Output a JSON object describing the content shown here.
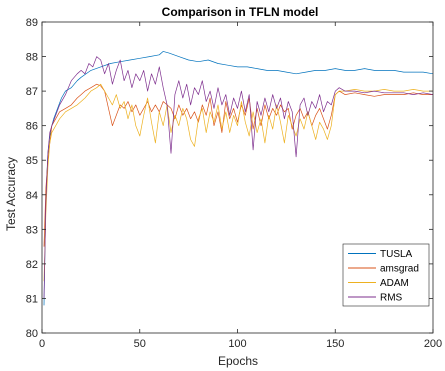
{
  "chart_data": {
    "type": "line",
    "title": "Comparison in TFLN model",
    "xlabel": "Epochs",
    "ylabel": "Test Accuracy",
    "xlim": [
      0,
      200
    ],
    "ylim": [
      80,
      89
    ],
    "xticks": [
      "0",
      "50",
      "100",
      "150",
      "200"
    ],
    "yticks": [
      "80",
      "81",
      "82",
      "83",
      "84",
      "85",
      "86",
      "87",
      "88",
      "89"
    ],
    "grid": false,
    "legend_position": "bottom-right",
    "series": [
      {
        "name": "TUSLA",
        "color": "#0072BD",
        "points": [
          [
            1,
            80.8
          ],
          [
            2,
            84.0
          ],
          [
            3,
            85.2
          ],
          [
            4,
            85.7
          ],
          [
            5,
            86.0
          ],
          [
            6,
            86.2
          ],
          [
            8,
            86.5
          ],
          [
            10,
            86.8
          ],
          [
            12,
            87.0
          ],
          [
            15,
            87.1
          ],
          [
            18,
            87.3
          ],
          [
            20,
            87.4
          ],
          [
            25,
            87.6
          ],
          [
            30,
            87.7
          ],
          [
            35,
            87.8
          ],
          [
            40,
            87.85
          ],
          [
            45,
            87.9
          ],
          [
            50,
            87.95
          ],
          [
            55,
            88.0
          ],
          [
            60,
            88.05
          ],
          [
            62,
            88.15
          ],
          [
            65,
            88.1
          ],
          [
            70,
            88.0
          ],
          [
            75,
            87.9
          ],
          [
            80,
            87.85
          ],
          [
            85,
            87.9
          ],
          [
            90,
            87.8
          ],
          [
            95,
            87.75
          ],
          [
            100,
            87.7
          ],
          [
            105,
            87.7
          ],
          [
            110,
            87.65
          ],
          [
            115,
            87.6
          ],
          [
            120,
            87.6
          ],
          [
            125,
            87.55
          ],
          [
            130,
            87.5
          ],
          [
            135,
            87.55
          ],
          [
            140,
            87.6
          ],
          [
            145,
            87.6
          ],
          [
            150,
            87.65
          ],
          [
            155,
            87.6
          ],
          [
            160,
            87.6
          ],
          [
            165,
            87.65
          ],
          [
            170,
            87.6
          ],
          [
            175,
            87.6
          ],
          [
            180,
            87.6
          ],
          [
            185,
            87.55
          ],
          [
            190,
            87.55
          ],
          [
            195,
            87.55
          ],
          [
            200,
            87.5
          ]
        ]
      },
      {
        "name": "amsgrad",
        "color": "#D95319",
        "points": [
          [
            1,
            82.5
          ],
          [
            2,
            84.2
          ],
          [
            3,
            85.0
          ],
          [
            4,
            85.5
          ],
          [
            5,
            86.0
          ],
          [
            7,
            86.2
          ],
          [
            9,
            86.4
          ],
          [
            12,
            86.5
          ],
          [
            15,
            86.6
          ],
          [
            18,
            86.8
          ],
          [
            20,
            86.9
          ],
          [
            22,
            87.0
          ],
          [
            25,
            87.1
          ],
          [
            28,
            87.2
          ],
          [
            30,
            87.15
          ],
          [
            32,
            87.0
          ],
          [
            34,
            86.5
          ],
          [
            36,
            86.0
          ],
          [
            38,
            86.3
          ],
          [
            40,
            86.6
          ],
          [
            42,
            86.5
          ],
          [
            44,
            86.7
          ],
          [
            46,
            86.4
          ],
          [
            48,
            86.6
          ],
          [
            50,
            86.3
          ],
          [
            52,
            86.5
          ],
          [
            54,
            86.7
          ],
          [
            56,
            86.4
          ],
          [
            58,
            86.6
          ],
          [
            60,
            86.4
          ],
          [
            62,
            86.7
          ],
          [
            64,
            86.6
          ],
          [
            66,
            86.5
          ],
          [
            68,
            86.2
          ],
          [
            70,
            86.6
          ],
          [
            72,
            86.3
          ],
          [
            74,
            86.5
          ],
          [
            76,
            86.2
          ],
          [
            78,
            86.4
          ],
          [
            80,
            86.1
          ],
          [
            82,
            86.6
          ],
          [
            84,
            86.3
          ],
          [
            86,
            86.8
          ],
          [
            88,
            86.0
          ],
          [
            90,
            86.4
          ],
          [
            92,
            85.8
          ],
          [
            94,
            86.7
          ],
          [
            96,
            86.2
          ],
          [
            98,
            86.5
          ],
          [
            100,
            86.1
          ],
          [
            102,
            86.6
          ],
          [
            104,
            86.3
          ],
          [
            106,
            86.8
          ],
          [
            108,
            85.9
          ],
          [
            110,
            86.5
          ],
          [
            112,
            86.0
          ],
          [
            114,
            86.6
          ],
          [
            116,
            86.2
          ],
          [
            118,
            86.5
          ],
          [
            120,
            86.3
          ],
          [
            122,
            86.6
          ],
          [
            124,
            86.4
          ],
          [
            126,
            86.5
          ],
          [
            128,
            85.9
          ],
          [
            130,
            86.3
          ],
          [
            132,
            86.5
          ],
          [
            134,
            86.2
          ],
          [
            136,
            86.4
          ],
          [
            138,
            86.0
          ],
          [
            140,
            86.3
          ],
          [
            142,
            86.5
          ],
          [
            144,
            86.2
          ],
          [
            146,
            85.9
          ],
          [
            148,
            86.3
          ],
          [
            150,
            86.9
          ],
          [
            152,
            87.0
          ],
          [
            155,
            86.9
          ],
          [
            160,
            86.95
          ],
          [
            165,
            86.9
          ],
          [
            170,
            86.85
          ],
          [
            175,
            86.9
          ],
          [
            180,
            86.9
          ],
          [
            185,
            86.9
          ],
          [
            190,
            86.95
          ],
          [
            195,
            86.9
          ],
          [
            200,
            86.9
          ]
        ]
      },
      {
        "name": "ADAM",
        "color": "#EDB120",
        "points": [
          [
            1,
            81.5
          ],
          [
            2,
            83.5
          ],
          [
            3,
            84.8
          ],
          [
            4,
            85.5
          ],
          [
            5,
            85.8
          ],
          [
            7,
            86.0
          ],
          [
            9,
            86.2
          ],
          [
            12,
            86.4
          ],
          [
            15,
            86.5
          ],
          [
            18,
            86.6
          ],
          [
            20,
            86.7
          ],
          [
            22,
            86.8
          ],
          [
            25,
            87.0
          ],
          [
            28,
            87.1
          ],
          [
            30,
            87.2
          ],
          [
            32,
            87.0
          ],
          [
            34,
            86.8
          ],
          [
            36,
            86.6
          ],
          [
            38,
            86.9
          ],
          [
            40,
            86.5
          ],
          [
            42,
            86.7
          ],
          [
            44,
            86.2
          ],
          [
            46,
            86.6
          ],
          [
            48,
            86.0
          ],
          [
            50,
            85.7
          ],
          [
            52,
            86.3
          ],
          [
            54,
            86.8
          ],
          [
            56,
            86.1
          ],
          [
            58,
            85.5
          ],
          [
            60,
            86.4
          ],
          [
            62,
            86.0
          ],
          [
            64,
            86.6
          ],
          [
            66,
            85.8
          ],
          [
            68,
            86.3
          ],
          [
            70,
            86.0
          ],
          [
            72,
            86.5
          ],
          [
            74,
            86.2
          ],
          [
            76,
            85.6
          ],
          [
            78,
            85.4
          ],
          [
            80,
            86.2
          ],
          [
            82,
            86.5
          ],
          [
            84,
            85.8
          ],
          [
            86,
            86.4
          ],
          [
            88,
            86.1
          ],
          [
            90,
            86.6
          ],
          [
            92,
            85.9
          ],
          [
            94,
            86.4
          ],
          [
            96,
            85.8
          ],
          [
            98,
            86.3
          ],
          [
            100,
            86.0
          ],
          [
            102,
            86.7
          ],
          [
            104,
            86.1
          ],
          [
            106,
            85.7
          ],
          [
            108,
            86.4
          ],
          [
            110,
            85.8
          ],
          [
            112,
            86.2
          ],
          [
            114,
            85.5
          ],
          [
            116,
            86.3
          ],
          [
            118,
            85.9
          ],
          [
            120,
            86.6
          ],
          [
            122,
            86.1
          ],
          [
            124,
            85.5
          ],
          [
            126,
            86.3
          ],
          [
            128,
            86.0
          ],
          [
            130,
            85.7
          ],
          [
            132,
            86.2
          ],
          [
            134,
            85.9
          ],
          [
            136,
            86.4
          ],
          [
            138,
            86.0
          ],
          [
            140,
            85.6
          ],
          [
            142,
            86.1
          ],
          [
            144,
            85.9
          ],
          [
            146,
            85.6
          ],
          [
            148,
            86.0
          ],
          [
            150,
            86.9
          ],
          [
            152,
            87.0
          ],
          [
            155,
            87.0
          ],
          [
            160,
            87.05
          ],
          [
            165,
            87.0
          ],
          [
            170,
            87.0
          ],
          [
            175,
            87.05
          ],
          [
            180,
            87.0
          ],
          [
            185,
            87.0
          ],
          [
            190,
            87.05
          ],
          [
            195,
            87.0
          ],
          [
            200,
            87.0
          ]
        ]
      },
      {
        "name": "RMS",
        "color": "#7E2F8E",
        "points": [
          [
            1,
            81.0
          ],
          [
            2,
            83.8
          ],
          [
            3,
            85.2
          ],
          [
            4,
            85.8
          ],
          [
            5,
            86.0
          ],
          [
            7,
            86.3
          ],
          [
            9,
            86.6
          ],
          [
            12,
            86.9
          ],
          [
            15,
            87.3
          ],
          [
            18,
            87.5
          ],
          [
            20,
            87.6
          ],
          [
            22,
            87.5
          ],
          [
            24,
            87.8
          ],
          [
            26,
            87.7
          ],
          [
            28,
            88.0
          ],
          [
            30,
            87.9
          ],
          [
            32,
            87.5
          ],
          [
            34,
            87.8
          ],
          [
            36,
            87.2
          ],
          [
            38,
            87.6
          ],
          [
            40,
            87.9
          ],
          [
            42,
            87.3
          ],
          [
            44,
            87.6
          ],
          [
            46,
            87.1
          ],
          [
            48,
            87.5
          ],
          [
            50,
            87.3
          ],
          [
            52,
            87.6
          ],
          [
            54,
            87.0
          ],
          [
            56,
            87.5
          ],
          [
            58,
            87.2
          ],
          [
            60,
            87.7
          ],
          [
            62,
            87.1
          ],
          [
            64,
            86.6
          ],
          [
            66,
            85.2
          ],
          [
            68,
            86.9
          ],
          [
            70,
            87.3
          ],
          [
            72,
            86.8
          ],
          [
            74,
            87.2
          ],
          [
            76,
            86.6
          ],
          [
            78,
            87.1
          ],
          [
            80,
            86.9
          ],
          [
            82,
            87.3
          ],
          [
            84,
            86.7
          ],
          [
            86,
            87.0
          ],
          [
            88,
            86.5
          ],
          [
            90,
            87.1
          ],
          [
            92,
            86.6
          ],
          [
            94,
            86.9
          ],
          [
            96,
            86.3
          ],
          [
            98,
            86.8
          ],
          [
            100,
            86.5
          ],
          [
            102,
            87.0
          ],
          [
            104,
            86.4
          ],
          [
            106,
            86.9
          ],
          [
            108,
            85.3
          ],
          [
            110,
            86.7
          ],
          [
            112,
            86.3
          ],
          [
            114,
            86.8
          ],
          [
            116,
            86.4
          ],
          [
            118,
            86.9
          ],
          [
            120,
            86.5
          ],
          [
            122,
            86.8
          ],
          [
            124,
            86.2
          ],
          [
            126,
            86.7
          ],
          [
            128,
            86.4
          ],
          [
            130,
            85.1
          ],
          [
            132,
            86.6
          ],
          [
            134,
            86.8
          ],
          [
            136,
            86.3
          ],
          [
            138,
            86.7
          ],
          [
            140,
            86.5
          ],
          [
            142,
            86.9
          ],
          [
            144,
            86.4
          ],
          [
            146,
            86.7
          ],
          [
            148,
            86.6
          ],
          [
            150,
            87.0
          ],
          [
            152,
            87.1
          ],
          [
            155,
            87.0
          ],
          [
            160,
            87.0
          ],
          [
            165,
            86.95
          ],
          [
            170,
            87.0
          ],
          [
            175,
            86.95
          ],
          [
            180,
            86.95
          ],
          [
            185,
            86.95
          ],
          [
            190,
            86.9
          ],
          [
            195,
            86.95
          ],
          [
            200,
            86.9
          ]
        ]
      }
    ]
  }
}
